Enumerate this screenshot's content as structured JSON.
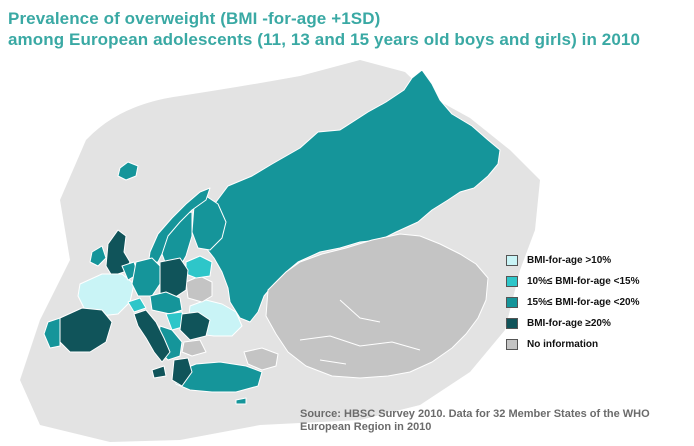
{
  "title_line1": "Prevalence of overweight (BMI -for-age +1SD)",
  "title_line2": "among European adolescents (11, 13 and 15 years old boys and girls) in 2010",
  "legend": [
    {
      "label": "BMI-for-age >10%",
      "color": "#c9f4f6"
    },
    {
      "label": "10%≤ BMI-for-age <15%",
      "color": "#2ec6c9"
    },
    {
      "label": "15%≤ BMI-for-age <20%",
      "color": "#15959a"
    },
    {
      "label": "BMI-for-age ≥20%",
      "color": "#10545a"
    },
    {
      "label": "No information",
      "color": "#c4c4c4"
    }
  ],
  "source_line1": "Source: HBSC Survey 2010. Data for 32 Member States of the WHO",
  "source_line2": "European Region in 2010",
  "colors": {
    "title": "#3aa9a4",
    "water_shadow": "#e2e2e2",
    "border": "#ffffff"
  }
}
